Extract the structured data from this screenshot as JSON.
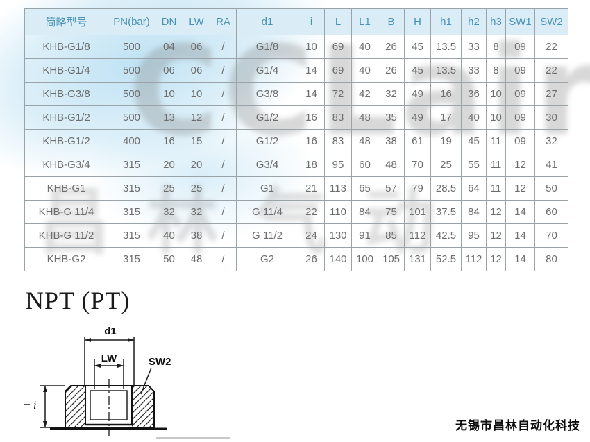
{
  "table": {
    "headers": [
      "简略型号",
      "PN(bar)",
      "DN",
      "LW",
      "RA",
      "d1",
      "i",
      "L",
      "L1",
      "B",
      "H",
      "h1",
      "h2",
      "h3",
      "SW1",
      "SW2"
    ],
    "rows": [
      [
        "KHB-G1/8",
        "500",
        "04",
        "06",
        "/",
        "G1/8",
        "10",
        "69",
        "40",
        "26",
        "45",
        "13.5",
        "33",
        "8",
        "09",
        "22"
      ],
      [
        "KHB-G1/4",
        "500",
        "06",
        "06",
        "/",
        "G1/4",
        "14",
        "69",
        "40",
        "26",
        "45",
        "13.5",
        "33",
        "8",
        "09",
        "22"
      ],
      [
        "KHB-G3/8",
        "500",
        "10",
        "10",
        "/",
        "G3/8",
        "14",
        "72",
        "42",
        "32",
        "49",
        "16",
        "36",
        "10",
        "09",
        "27"
      ],
      [
        "KHB-G1/2",
        "500",
        "13",
        "12",
        "/",
        "G1/2",
        "16",
        "83",
        "48",
        "35",
        "49",
        "17",
        "40",
        "10",
        "09",
        "30"
      ],
      [
        "KHB-G1/2",
        "400",
        "16",
        "15",
        "/",
        "G1/2",
        "16",
        "83",
        "48",
        "38",
        "61",
        "19",
        "45",
        "11",
        "09",
        "32"
      ],
      [
        "KHB-G3/4",
        "315",
        "20",
        "20",
        "/",
        "G3/4",
        "18",
        "95",
        "60",
        "48",
        "70",
        "25",
        "55",
        "11",
        "12",
        "41"
      ],
      [
        "KHB-G1",
        "315",
        "25",
        "25",
        "/",
        "G1",
        "21",
        "113",
        "65",
        "57",
        "79",
        "28.5",
        "64",
        "11",
        "12",
        "50"
      ],
      [
        "KHB-G 11/4",
        "315",
        "32",
        "32",
        "/",
        "G 11/4",
        "22",
        "110",
        "84",
        "75",
        "101",
        "37.5",
        "84",
        "12",
        "14",
        "60"
      ],
      [
        "KHB-G 11/2",
        "315",
        "40",
        "38",
        "/",
        "G 11/2",
        "24",
        "130",
        "91",
        "85",
        "112",
        "42.5",
        "95",
        "12",
        "14",
        "70"
      ],
      [
        "KHB-G2",
        "315",
        "50",
        "48",
        "/",
        "G2",
        "26",
        "140",
        "100",
        "105",
        "131",
        "52.5",
        "112",
        "12",
        "14",
        "80"
      ]
    ]
  },
  "section": {
    "heading": "NPT (PT)"
  },
  "diagram": {
    "d1": "d1",
    "lw": "LW",
    "sw2": "SW2",
    "i": "i"
  },
  "watermark": {
    "logo": "CCLair",
    "chinese": "昌林气动"
  },
  "footer": {
    "company": "无锡市昌林自动化科技"
  },
  "colors": {
    "header_bg": "#daedf7",
    "header_text": "#4892b4",
    "cell_text": "#6d6d6d",
    "border": "#9aa3a8",
    "watermark_blue": "#82c6e8"
  }
}
